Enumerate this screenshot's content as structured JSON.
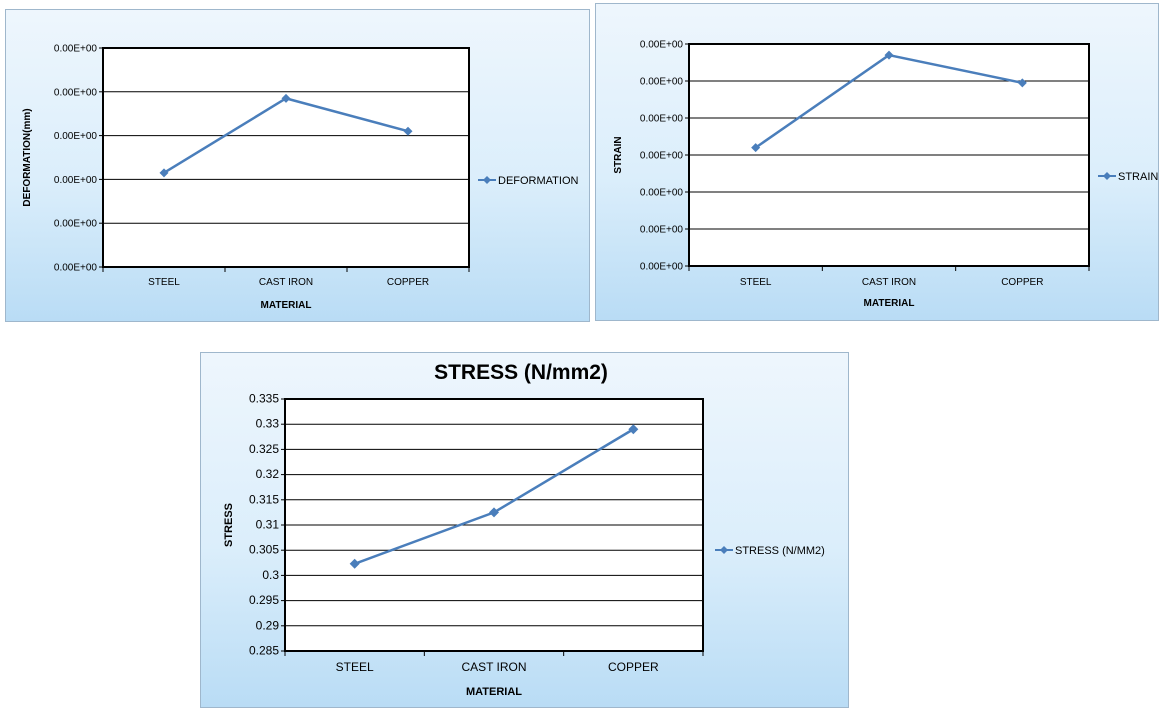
{
  "chart_data": [
    {
      "type": "line",
      "title": "",
      "xlabel": "MATERIAL",
      "ylabel": "DEFORMATION(mm)",
      "categories": [
        "STEEL",
        "CAST IRON",
        "COPPER"
      ],
      "y_tick_labels": [
        "0.00E+00",
        "0.00E+00",
        "0.00E+00",
        "0.00E+00",
        "0.00E+00",
        "0.00E+00"
      ],
      "ylim": [
        0,
        5
      ],
      "series": [
        {
          "name": "DEFORMATION",
          "values": [
            2.15,
            3.85,
            3.1
          ]
        }
      ],
      "legend": "right",
      "grid": true,
      "color": "#4a7ebb"
    },
    {
      "type": "line",
      "title": "",
      "xlabel": "MATERIAL",
      "ylabel": "STRAIN",
      "categories": [
        "STEEL",
        "CAST IRON",
        "COPPER"
      ],
      "y_tick_labels": [
        "0.00E+00",
        "0.00E+00",
        "0.00E+00",
        "0.00E+00",
        "0.00E+00",
        "0.00E+00",
        "0.00E+00"
      ],
      "ylim": [
        0,
        6
      ],
      "series": [
        {
          "name": "STRAIN",
          "values": [
            3.2,
            5.7,
            4.95
          ]
        }
      ],
      "legend": "right",
      "grid": true,
      "color": "#4a7ebb"
    },
    {
      "type": "line",
      "title": "STRESS (N/mm2)",
      "xlabel": "MATERIAL",
      "ylabel": "STRESS",
      "categories": [
        "STEEL",
        "CAST IRON",
        "COPPER"
      ],
      "y_tick_labels": [
        "0.285",
        "0.29",
        "0.295",
        "0.3",
        "0.305",
        "0.31",
        "0.315",
        "0.32",
        "0.325",
        "0.33",
        "0.335"
      ],
      "ylim": [
        0.285,
        0.335
      ],
      "series": [
        {
          "name": "STRESS (N/MM2)",
          "values": [
            0.3023,
            0.3125,
            0.329
          ]
        }
      ],
      "legend": "right",
      "grid": true,
      "color": "#4a7ebb"
    }
  ]
}
